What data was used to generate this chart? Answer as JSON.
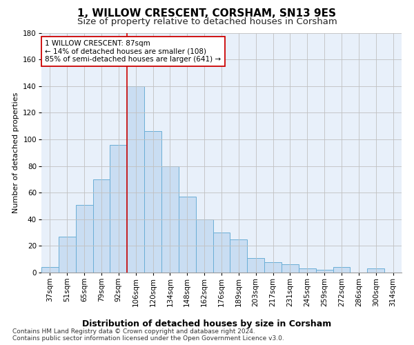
{
  "title": "1, WILLOW CRESCENT, CORSHAM, SN13 9ES",
  "subtitle": "Size of property relative to detached houses in Corsham",
  "xlabel": "Distribution of detached houses by size in Corsham",
  "ylabel": "Number of detached properties",
  "bar_labels": [
    "37sqm",
    "51sqm",
    "65sqm",
    "79sqm",
    "92sqm",
    "106sqm",
    "120sqm",
    "134sqm",
    "148sqm",
    "162sqm",
    "176sqm",
    "189sqm",
    "203sqm",
    "217sqm",
    "231sqm",
    "245sqm",
    "259sqm",
    "272sqm",
    "286sqm",
    "300sqm",
    "314sqm"
  ],
  "bar_values": [
    4,
    27,
    51,
    70,
    96,
    140,
    106,
    80,
    57,
    40,
    30,
    25,
    11,
    8,
    6,
    3,
    2,
    4,
    0,
    3,
    0
  ],
  "bar_color": "#c9ddf2",
  "bar_edge_color": "#6aaed6",
  "vline_x": 4.5,
  "vline_color": "#cc0000",
  "annotation_text": "1 WILLOW CRESCENT: 87sqm\n← 14% of detached houses are smaller (108)\n85% of semi-detached houses are larger (641) →",
  "annotation_box_color": "#ffffff",
  "annotation_box_edge": "#cc0000",
  "ylim": [
    0,
    180
  ],
  "yticks": [
    0,
    20,
    40,
    60,
    80,
    100,
    120,
    140,
    160,
    180
  ],
  "footer_line1": "Contains HM Land Registry data © Crown copyright and database right 2024.",
  "footer_line2": "Contains public sector information licensed under the Open Government Licence v3.0.",
  "bg_color": "#ffffff",
  "plot_bg_color": "#e8f0fa",
  "grid_color": "#c0c0c0",
  "title_fontsize": 11,
  "subtitle_fontsize": 9.5,
  "ylabel_fontsize": 8,
  "xlabel_fontsize": 9,
  "tick_fontsize": 7.5,
  "annotation_fontsize": 7.5,
  "footer_fontsize": 6.5
}
